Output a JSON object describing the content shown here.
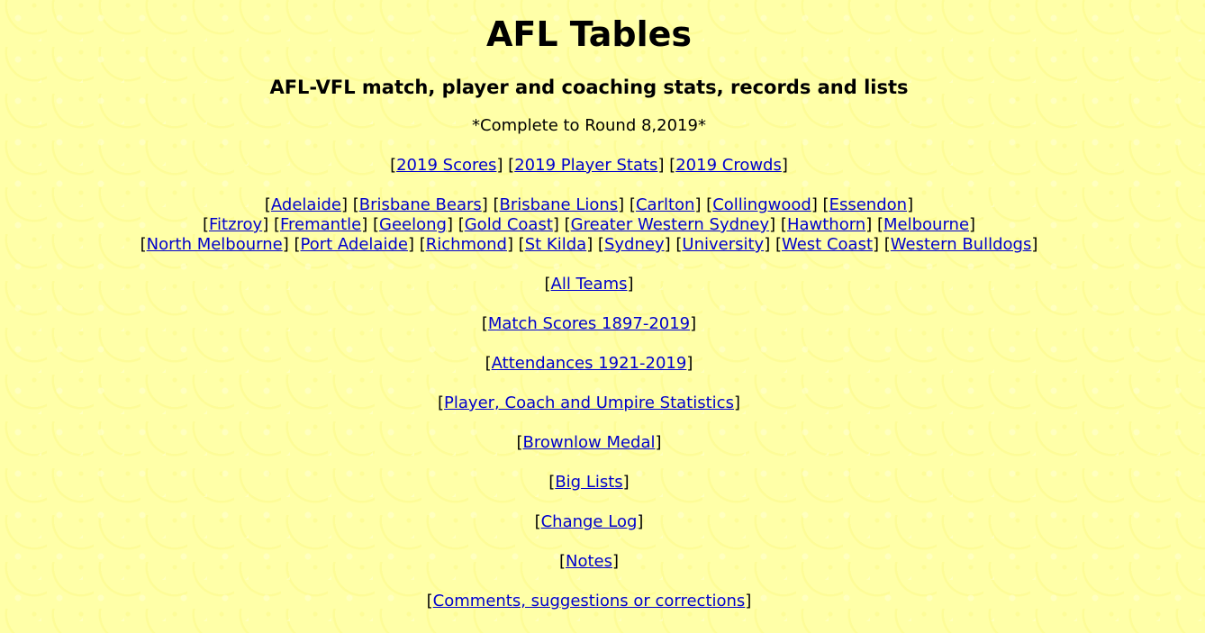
{
  "title": "AFL Tables",
  "subtitle": "AFL-VFL match, player and coaching stats, records and lists",
  "status": "*Complete to Round 8,2019*",
  "season_links": [
    "2019 Scores",
    "2019 Player Stats",
    "2019 Crowds"
  ],
  "teams_row1": [
    "Adelaide",
    "Brisbane Bears",
    "Brisbane Lions",
    "Carlton",
    "Collingwood",
    "Essendon"
  ],
  "teams_row2": [
    "Fitzroy",
    "Fremantle",
    "Geelong",
    "Gold Coast",
    "Greater Western Sydney",
    "Hawthorn",
    "Melbourne"
  ],
  "teams_row3": [
    "North Melbourne",
    "Port Adelaide",
    "Richmond",
    "St Kilda",
    "Sydney",
    "University",
    "West Coast",
    "Western Bulldogs"
  ],
  "links": {
    "all_teams": "All Teams",
    "match_scores": "Match Scores 1897-2019",
    "attendances": "Attendances 1921-2019",
    "player_stats": "Player, Coach and Umpire Statistics",
    "brownlow": "Brownlow Medal",
    "big_lists": "Big Lists",
    "change_log": "Change Log",
    "notes": "Notes",
    "comments": "Comments, suggestions or corrections"
  }
}
